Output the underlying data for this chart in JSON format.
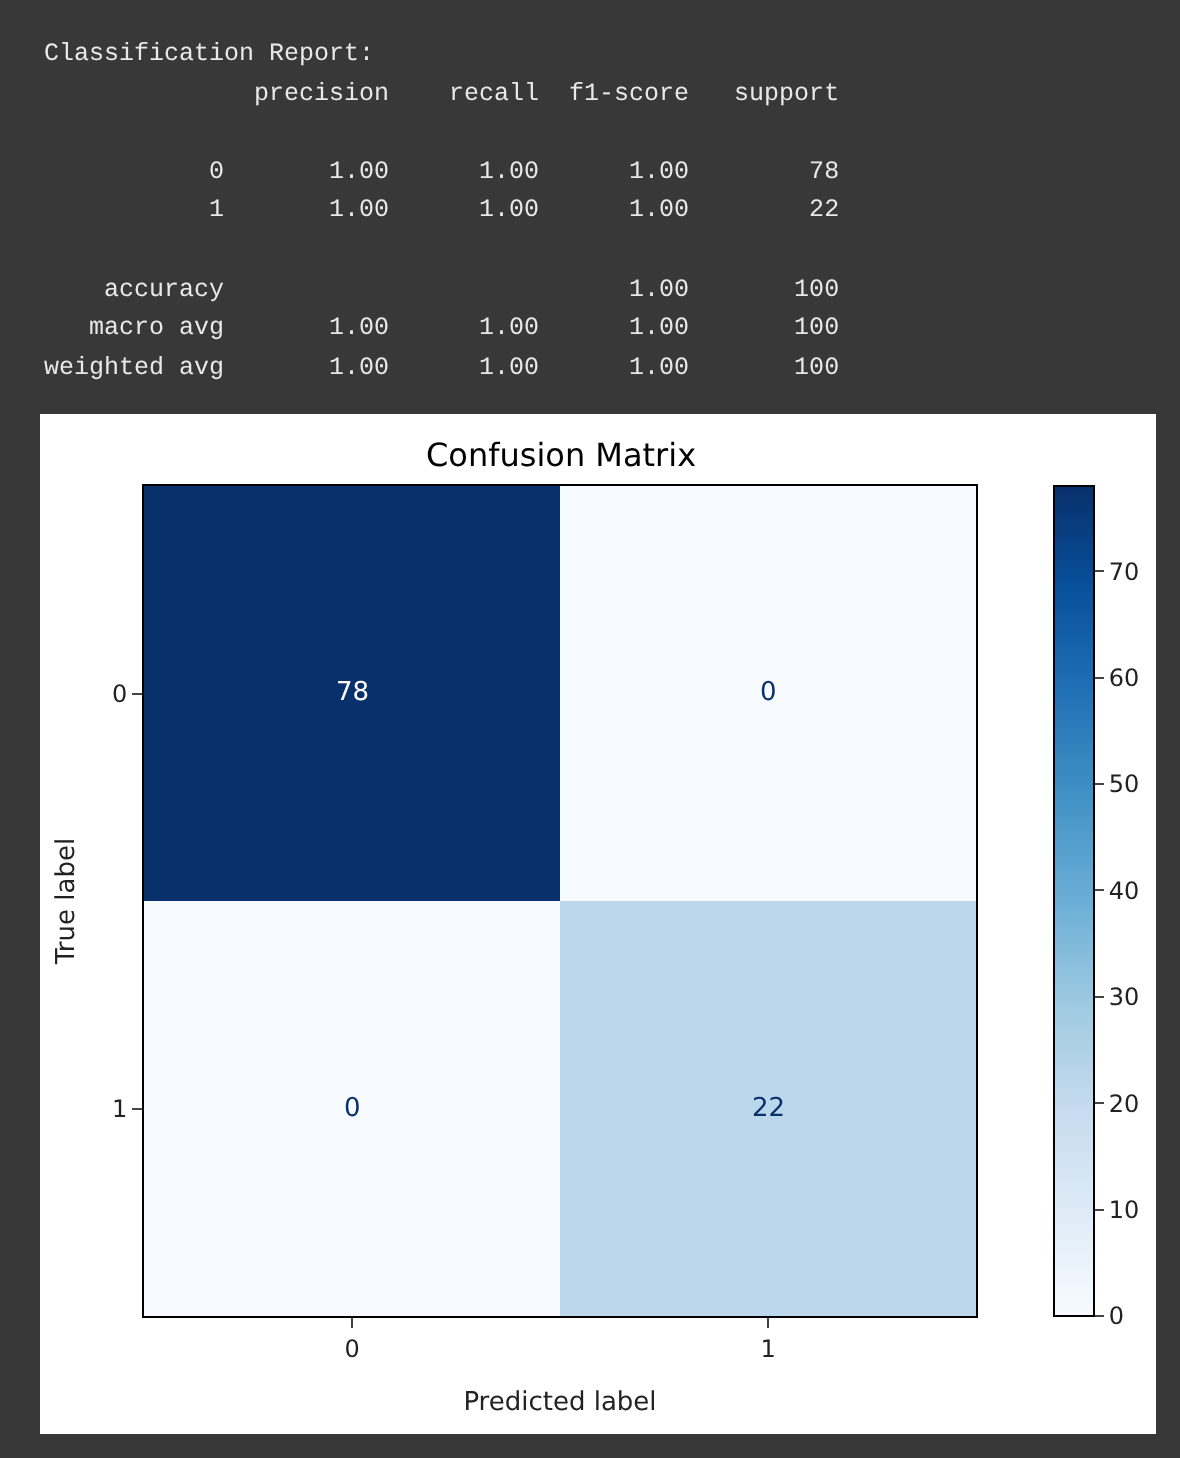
{
  "chart_data": [
    {
      "type": "other",
      "annotations": [
        "Classification Report:",
        "              precision    recall  f1-score   support",
        "           0       1.00      1.00      1.00        78",
        "           1       1.00      1.00      1.00        22",
        "    accuracy                           1.00       100",
        "   macro avg       1.00      1.00      1.00       100",
        "weighted avg       1.00      1.00      1.00       100"
      ]
    },
    {
      "type": "heatmap",
      "title": "Confusion Matrix",
      "xlabel": "Predicted label",
      "ylabel": "True label",
      "categories": [
        "0",
        "1"
      ],
      "y_categories": [
        "0",
        "1"
      ],
      "cells": [
        [
          78,
          0
        ],
        [
          0,
          22
        ]
      ],
      "clim": [
        0,
        78
      ],
      "cticks": [
        0,
        10,
        20,
        30,
        40,
        50,
        60,
        70
      ],
      "data_labels": true
    }
  ]
}
